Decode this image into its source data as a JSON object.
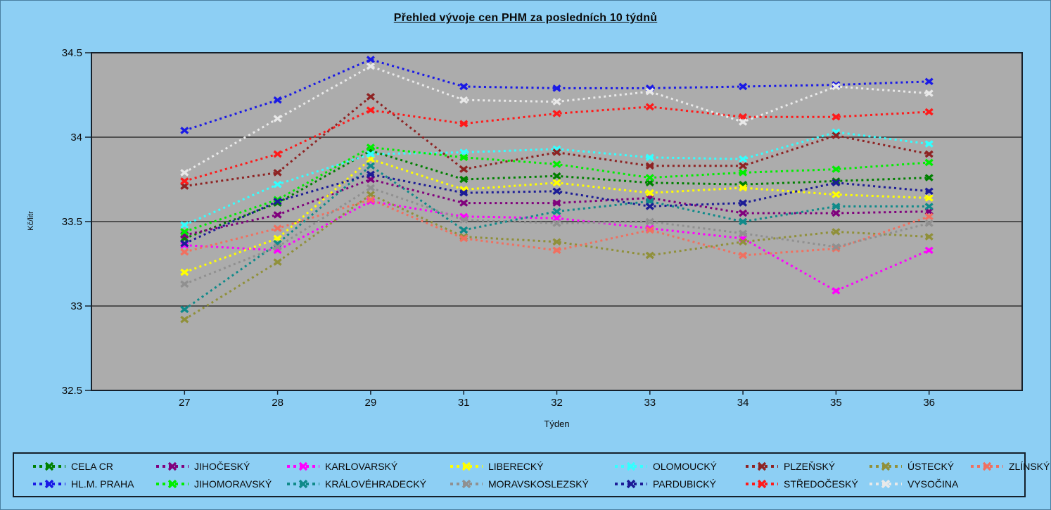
{
  "chart_data": {
    "type": "line",
    "title": "Přehled vývoje cen PHM za posledních 10 týdnů",
    "xlabel": "Týden",
    "ylabel": "Kč/litr",
    "categories": [
      "27",
      "28",
      "29",
      "31",
      "32",
      "33",
      "34",
      "35",
      "36"
    ],
    "y_ticks": [
      34.5,
      34,
      33.5,
      33,
      32.5
    ],
    "ylim": [
      32.5,
      34.5
    ],
    "grid": "horizontal gridlines at 33, 33.5, 34",
    "legend_position": "bottom box, two rows",
    "line_style": "dotted with bold x markers",
    "plot_bg_color": "#ACACAC",
    "page_bg_color": "#8DCFF4",
    "axis_color": "#15202B",
    "series": [
      {
        "name": "CELA CR",
        "color": "#008000",
        "values": [
          33.4,
          33.61,
          33.92,
          33.75,
          33.77,
          33.73,
          33.72,
          33.74,
          33.76
        ]
      },
      {
        "name": "JIHOČESKÝ",
        "color": "#80007D",
        "values": [
          33.42,
          33.54,
          33.75,
          33.61,
          33.61,
          33.64,
          33.55,
          33.55,
          33.56
        ]
      },
      {
        "name": "KARLOVARSKÝ",
        "color": "#FF00FF",
        "values": [
          33.36,
          33.33,
          33.62,
          33.53,
          33.52,
          33.46,
          33.4,
          33.09,
          33.33
        ]
      },
      {
        "name": "LIBERECKÝ",
        "color": "#FFFF00",
        "values": [
          33.2,
          33.4,
          33.87,
          33.69,
          33.73,
          33.67,
          33.7,
          33.66,
          33.64
        ]
      },
      {
        "name": "OLOMOUCKÝ",
        "color": "#33FFFF",
        "values": [
          33.48,
          33.72,
          33.9,
          33.91,
          33.93,
          33.88,
          33.87,
          34.03,
          33.96
        ]
      },
      {
        "name": "PLZEŇSKÝ",
        "color": "#8E2323",
        "values": [
          33.71,
          33.79,
          34.24,
          33.81,
          33.91,
          33.83,
          33.83,
          34.01,
          33.9
        ]
      },
      {
        "name": "ÚSTECKÝ",
        "color": "#90903A",
        "values": [
          32.92,
          33.26,
          33.66,
          33.41,
          33.38,
          33.3,
          33.38,
          33.44,
          33.41
        ]
      },
      {
        "name": "ZLÍNSKÝ",
        "color": "#F07060",
        "values": [
          33.32,
          33.46,
          33.63,
          33.4,
          33.33,
          33.45,
          33.3,
          33.34,
          33.53
        ]
      },
      {
        "name": "HL.M. PRAHA",
        "color": "#1A1AE6",
        "values": [
          34.04,
          34.22,
          34.46,
          34.3,
          34.29,
          34.29,
          34.3,
          34.31,
          34.33
        ]
      },
      {
        "name": "JIHOMORAVSKÝ",
        "color": "#00EE00",
        "values": [
          33.44,
          33.63,
          33.94,
          33.88,
          33.84,
          33.76,
          33.79,
          33.81,
          33.85
        ]
      },
      {
        "name": "KRÁLOVÉHRADECKÝ",
        "color": "#108A8A",
        "values": [
          32.98,
          33.37,
          33.83,
          33.45,
          33.56,
          33.62,
          33.5,
          33.59,
          33.59
        ]
      },
      {
        "name": "MORAVSKOSLEZSKÝ",
        "color": "#909090",
        "values": [
          33.13,
          33.35,
          33.7,
          33.51,
          33.49,
          33.5,
          33.43,
          33.35,
          33.49
        ]
      },
      {
        "name": "PARDUBICKÝ",
        "color": "#1C1C96",
        "values": [
          33.37,
          33.62,
          33.78,
          33.67,
          33.68,
          33.59,
          33.61,
          33.73,
          33.68
        ]
      },
      {
        "name": "STŘEDOČESKÝ",
        "color": "#FF1A1A",
        "values": [
          33.74,
          33.9,
          34.16,
          34.08,
          34.14,
          34.18,
          34.12,
          34.12,
          34.15
        ]
      },
      {
        "name": "VYSOČINA",
        "color": "#E9E9E9",
        "values": [
          33.79,
          34.11,
          34.42,
          34.22,
          34.21,
          34.27,
          34.09,
          34.3,
          34.26
        ]
      }
    ]
  }
}
